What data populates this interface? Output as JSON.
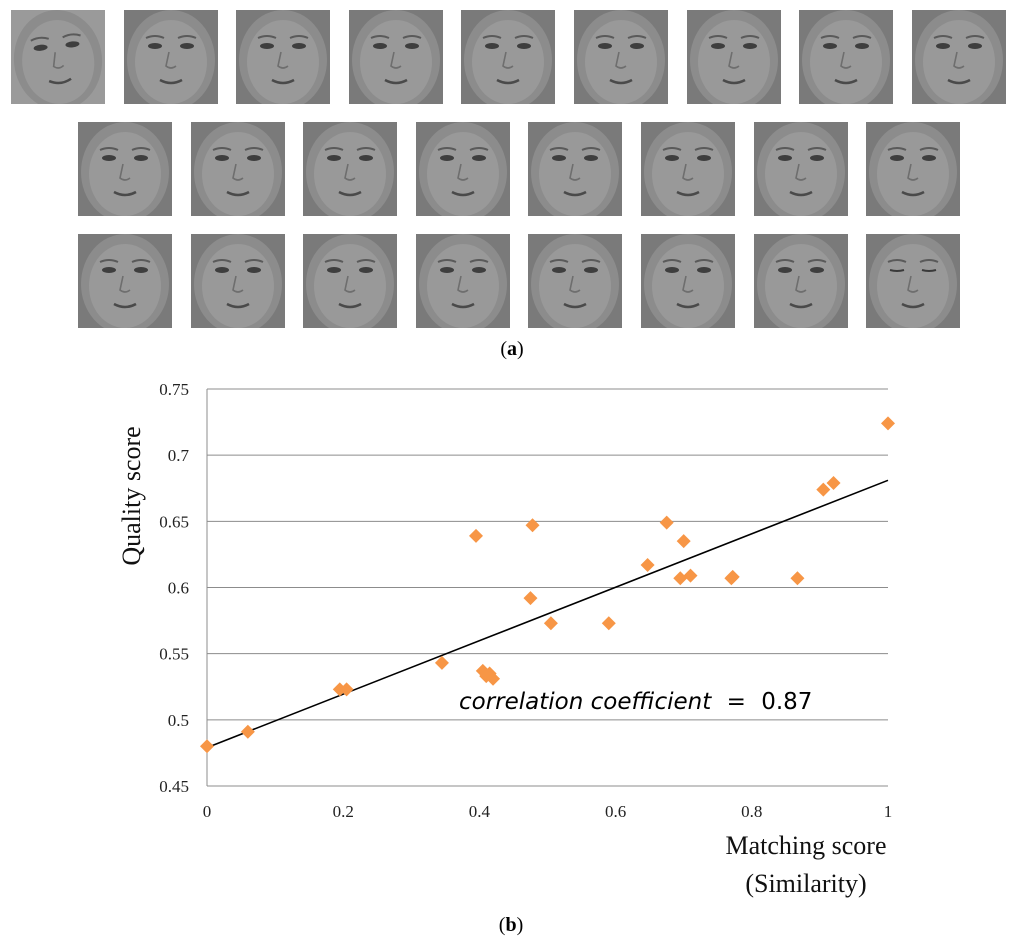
{
  "panel_a": {
    "caption_label": "a",
    "rows": [
      9,
      8,
      8
    ],
    "face_count": 25
  },
  "panel_b": {
    "caption_label": "b"
  },
  "chart_data": {
    "type": "scatter",
    "title": "",
    "xlabel": "Matching score",
    "xlabel_line2": "(Similarity)",
    "ylabel": "Quality score",
    "xlim": [
      0,
      1
    ],
    "ylim": [
      0.45,
      0.75
    ],
    "xticks": [
      0,
      0.2,
      0.4,
      0.6,
      0.8,
      1
    ],
    "xtick_labels": [
      "0",
      "0.2",
      "0.4",
      "0.6",
      "0.8",
      "1"
    ],
    "yticks": [
      0.45,
      0.5,
      0.55,
      0.6,
      0.65,
      0.7,
      0.75
    ],
    "ytick_labels": [
      "0.45",
      "0.5",
      "0.55",
      "0.6",
      "0.65",
      "0.7",
      "0.75"
    ],
    "grid": "horizontal",
    "marker": "diamond",
    "marker_color": "#F79646",
    "trendline_color": "#000000",
    "trendline": {
      "x": [
        0,
        1
      ],
      "y": [
        0.479,
        0.681
      ]
    },
    "annotation": {
      "text": "correlation coefficient",
      "operator": "=",
      "value": "0.87"
    },
    "points": [
      {
        "x": 0.0,
        "y": 0.48
      },
      {
        "x": 0.06,
        "y": 0.491
      },
      {
        "x": 0.195,
        "y": 0.523
      },
      {
        "x": 0.205,
        "y": 0.523
      },
      {
        "x": 0.345,
        "y": 0.543
      },
      {
        "x": 0.395,
        "y": 0.639
      },
      {
        "x": 0.405,
        "y": 0.537
      },
      {
        "x": 0.41,
        "y": 0.533
      },
      {
        "x": 0.415,
        "y": 0.535
      },
      {
        "x": 0.42,
        "y": 0.531
      },
      {
        "x": 0.475,
        "y": 0.592
      },
      {
        "x": 0.478,
        "y": 0.647
      },
      {
        "x": 0.505,
        "y": 0.573
      },
      {
        "x": 0.59,
        "y": 0.573
      },
      {
        "x": 0.647,
        "y": 0.617
      },
      {
        "x": 0.675,
        "y": 0.649
      },
      {
        "x": 0.695,
        "y": 0.607
      },
      {
        "x": 0.7,
        "y": 0.635
      },
      {
        "x": 0.71,
        "y": 0.609
      },
      {
        "x": 0.77,
        "y": 0.607
      },
      {
        "x": 0.772,
        "y": 0.608
      },
      {
        "x": 0.867,
        "y": 0.607
      },
      {
        "x": 0.905,
        "y": 0.674
      },
      {
        "x": 0.92,
        "y": 0.679
      },
      {
        "x": 1.0,
        "y": 0.724
      }
    ]
  }
}
